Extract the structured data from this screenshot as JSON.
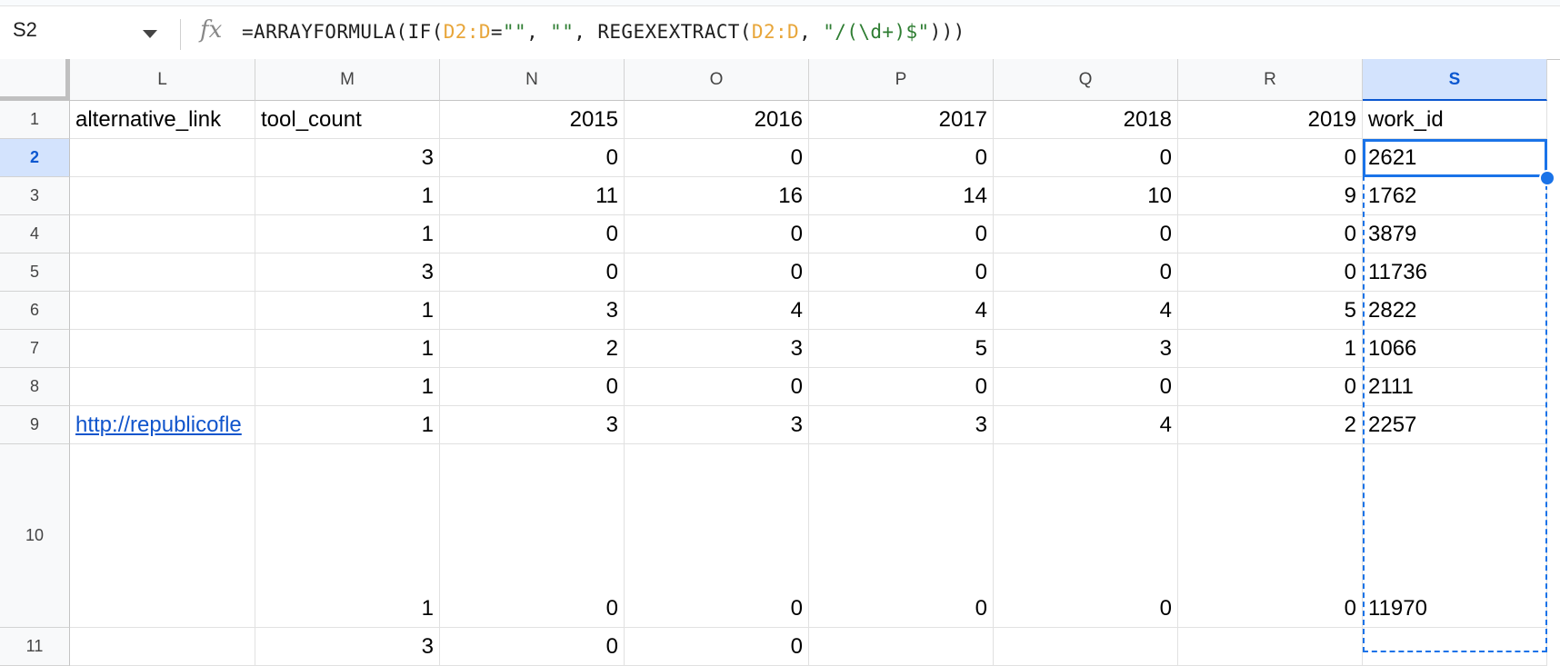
{
  "formula_bar": {
    "name_box": "S2",
    "fx_label": "fx",
    "formula_parts": [
      {
        "text": "=ARRAYFORMULA(IF(",
        "kind": "plain"
      },
      {
        "text": "D2:D",
        "kind": "ref"
      },
      {
        "text": "=",
        "kind": "plain"
      },
      {
        "text": "\"\"",
        "kind": "str"
      },
      {
        "text": ", ",
        "kind": "plain"
      },
      {
        "text": "\"\"",
        "kind": "str"
      },
      {
        "text": ", REGEXEXTRACT(",
        "kind": "plain"
      },
      {
        "text": "D2:D",
        "kind": "ref"
      },
      {
        "text": ", ",
        "kind": "plain"
      },
      {
        "text": "\"/(\\d+)$\"",
        "kind": "str"
      },
      {
        "text": ")))",
        "kind": "plain"
      }
    ]
  },
  "columns": [
    "L",
    "M",
    "N",
    "O",
    "P",
    "Q",
    "R",
    "S"
  ],
  "selected_column": "S",
  "selected_row": "2",
  "rows": [
    {
      "num": "1",
      "cells": [
        "alternative_link",
        "tool_count",
        "2015",
        "2016",
        "2017",
        "2018",
        "2019",
        "work_id"
      ]
    },
    {
      "num": "2",
      "cells": [
        "",
        "3",
        "0",
        "0",
        "0",
        "0",
        "0",
        "2621"
      ]
    },
    {
      "num": "3",
      "cells": [
        "",
        "1",
        "11",
        "16",
        "14",
        "10",
        "9",
        "1762"
      ]
    },
    {
      "num": "4",
      "cells": [
        "",
        "1",
        "0",
        "0",
        "0",
        "0",
        "0",
        "3879"
      ]
    },
    {
      "num": "5",
      "cells": [
        "",
        "3",
        "0",
        "0",
        "0",
        "0",
        "0",
        "11736"
      ]
    },
    {
      "num": "6",
      "cells": [
        "",
        "1",
        "3",
        "4",
        "4",
        "4",
        "5",
        "2822"
      ]
    },
    {
      "num": "7",
      "cells": [
        "",
        "1",
        "2",
        "3",
        "5",
        "3",
        "1",
        "1066"
      ]
    },
    {
      "num": "8",
      "cells": [
        "",
        "1",
        "0",
        "0",
        "0",
        "0",
        "0",
        "2111"
      ]
    },
    {
      "num": "9",
      "cells": [
        "http://republicofle",
        "1",
        "3",
        "3",
        "3",
        "4",
        "2",
        "2257"
      ]
    },
    {
      "num": "10",
      "cells": [
        "",
        "1",
        "0",
        "0",
        "0",
        "0",
        "0",
        "11970"
      ]
    },
    {
      "num": "11",
      "cells": [
        "",
        "3",
        "0",
        "0",
        "",
        "",
        "",
        ""
      ]
    }
  ],
  "colors": {
    "selection": "#1a73e8",
    "header_selected_bg": "#d3e3fd",
    "formula_ref": "#e8a63a",
    "formula_string": "#2e7d32",
    "link": "#1155cc"
  }
}
